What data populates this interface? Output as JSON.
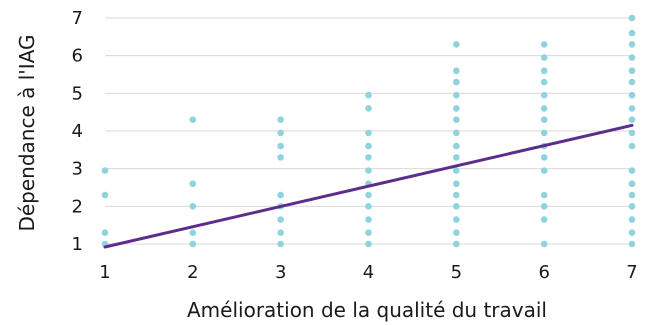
{
  "chart_data": {
    "type": "scatter",
    "title": "",
    "xlabel": "Amélioration de la qualité du travail",
    "ylabel": "Dépendance à l'IAG",
    "xlim": [
      1,
      7
    ],
    "ylim": [
      1,
      7
    ],
    "x_ticks": [
      "1",
      "2",
      "3",
      "4",
      "5",
      "6",
      "7"
    ],
    "y_ticks": [
      "1",
      "2",
      "3",
      "4",
      "5",
      "6",
      "7"
    ],
    "grid": "horizontal",
    "legend": "none",
    "series": [
      {
        "color": "#8fd3df",
        "points": [
          [
            1,
            1
          ],
          [
            1,
            1.3
          ],
          [
            1,
            2.3
          ],
          [
            1,
            2.95
          ],
          [
            2,
            1
          ],
          [
            2,
            1.3
          ],
          [
            2,
            2
          ],
          [
            2,
            2.6
          ],
          [
            2,
            4.3
          ],
          [
            3,
            1
          ],
          [
            3,
            1.3
          ],
          [
            3,
            1.65
          ],
          [
            3,
            2
          ],
          [
            3,
            2.3
          ],
          [
            3,
            3.3
          ],
          [
            3,
            3.6
          ],
          [
            3,
            3.95
          ],
          [
            3,
            4.3
          ],
          [
            4,
            1
          ],
          [
            4,
            1.3
          ],
          [
            4,
            1.65
          ],
          [
            4,
            2
          ],
          [
            4,
            2.3
          ],
          [
            4,
            2.6
          ],
          [
            4,
            2.95
          ],
          [
            4,
            3.3
          ],
          [
            4,
            3.6
          ],
          [
            4,
            3.95
          ],
          [
            4,
            4.6
          ],
          [
            4,
            4.95
          ],
          [
            5,
            1
          ],
          [
            5,
            1.3
          ],
          [
            5,
            1.65
          ],
          [
            5,
            2
          ],
          [
            5,
            2.3
          ],
          [
            5,
            2.6
          ],
          [
            5,
            2.95
          ],
          [
            5,
            3.3
          ],
          [
            5,
            3.6
          ],
          [
            5,
            3.95
          ],
          [
            5,
            4.3
          ],
          [
            5,
            4.6
          ],
          [
            5,
            4.95
          ],
          [
            5,
            5.3
          ],
          [
            5,
            5.6
          ],
          [
            5,
            6.3
          ],
          [
            6,
            1
          ],
          [
            6,
            1.65
          ],
          [
            6,
            2
          ],
          [
            6,
            2.3
          ],
          [
            6,
            2.95
          ],
          [
            6,
            3.3
          ],
          [
            6,
            3.6
          ],
          [
            6,
            3.95
          ],
          [
            6,
            4.3
          ],
          [
            6,
            4.6
          ],
          [
            6,
            4.95
          ],
          [
            6,
            5.3
          ],
          [
            6,
            5.6
          ],
          [
            6,
            5.95
          ],
          [
            6,
            6.3
          ],
          [
            7,
            1
          ],
          [
            7,
            1.3
          ],
          [
            7,
            1.65
          ],
          [
            7,
            2
          ],
          [
            7,
            2.3
          ],
          [
            7,
            2.6
          ],
          [
            7,
            2.95
          ],
          [
            7,
            3.6
          ],
          [
            7,
            3.95
          ],
          [
            7,
            4.3
          ],
          [
            7,
            4.6
          ],
          [
            7,
            4.95
          ],
          [
            7,
            5.3
          ],
          [
            7,
            5.6
          ],
          [
            7,
            5.95
          ],
          [
            7,
            6.3
          ],
          [
            7,
            6.6
          ],
          [
            7,
            7
          ]
        ]
      }
    ],
    "trendline": {
      "type": "linear",
      "color": "#5b2e8c",
      "x": [
        1,
        7
      ],
      "y": [
        0.92,
        4.15
      ]
    },
    "gridline_color": "#d9d9d9"
  }
}
